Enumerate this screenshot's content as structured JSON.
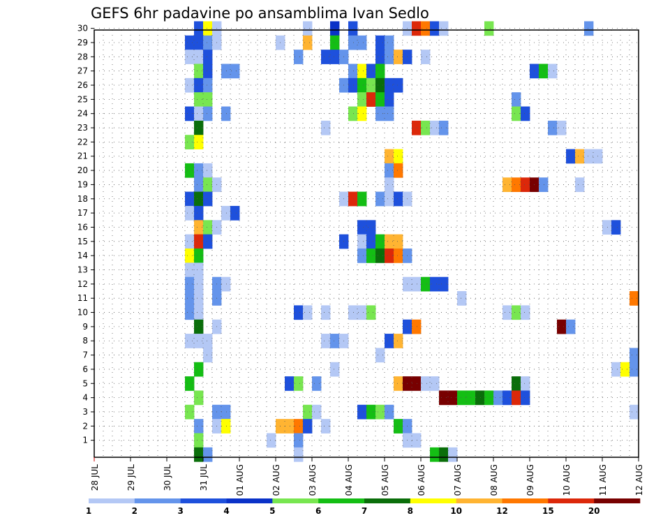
{
  "chart_data": {
    "type": "heatmap",
    "title": "GEFS 6hr padavine po ansamblima Ivan Sedlo",
    "xlabel": "",
    "ylabel": "",
    "x_tick_labels": [
      "28 JUL",
      "29 JUL",
      "30 JUL",
      "31 JUL",
      "01 AUG",
      "02 AUG",
      "03 AUG",
      "04 AUG",
      "05 AUG",
      "06 AUG",
      "07 AUG",
      "08 AUG",
      "09 AUG",
      "10 AUG",
      "11 AUG",
      "12 AUG"
    ],
    "y_tick_labels": [
      "1",
      "2",
      "3",
      "4",
      "5",
      "6",
      "7",
      "8",
      "9",
      "10",
      "11",
      "12",
      "13",
      "14",
      "15",
      "16",
      "17",
      "18",
      "19",
      "20",
      "21",
      "22",
      "23",
      "24",
      "25",
      "26",
      "27",
      "28",
      "29",
      "30"
    ],
    "x_unit": "6-hour step from 28 JUL 00Z",
    "xlim": [
      0,
      60
    ],
    "ylim": [
      0,
      30
    ],
    "grid": true,
    "colorbar": {
      "labels": [
        "1",
        "2",
        "3",
        "4",
        "5",
        "6",
        "7",
        "8",
        "10",
        "12",
        "15",
        "20"
      ],
      "colors": [
        "#b4c8f5",
        "#6494eb",
        "#1e50dc",
        "#0a32c8",
        "#78e650",
        "#14be14",
        "#0a6e0a",
        "#ffff00",
        "#ffb432",
        "#ff7800",
        "#dc280a",
        "#780000"
      ]
    },
    "cells": [
      [
        11,
        30,
        3
      ],
      [
        12,
        30,
        8
      ],
      [
        13,
        30,
        1
      ],
      [
        23,
        30,
        1
      ],
      [
        26,
        30,
        4
      ],
      [
        28,
        30,
        3
      ],
      [
        34,
        30,
        1
      ],
      [
        35,
        30,
        11
      ],
      [
        36,
        30,
        10
      ],
      [
        37,
        30,
        3
      ],
      [
        38,
        30,
        1
      ],
      [
        43,
        30,
        5
      ],
      [
        54,
        30,
        2
      ],
      [
        10,
        29,
        3
      ],
      [
        11,
        29,
        3
      ],
      [
        12,
        29,
        2
      ],
      [
        13,
        29,
        1
      ],
      [
        20,
        29,
        1
      ],
      [
        23,
        29,
        9
      ],
      [
        26,
        29,
        6
      ],
      [
        28,
        29,
        2
      ],
      [
        29,
        29,
        2
      ],
      [
        31,
        29,
        3
      ],
      [
        32,
        29,
        2
      ],
      [
        10,
        28,
        1
      ],
      [
        11,
        28,
        1
      ],
      [
        12,
        28,
        3
      ],
      [
        22,
        28,
        2
      ],
      [
        25,
        28,
        3
      ],
      [
        26,
        28,
        3
      ],
      [
        27,
        28,
        2
      ],
      [
        31,
        28,
        3
      ],
      [
        32,
        28,
        2
      ],
      [
        33,
        28,
        9
      ],
      [
        34,
        28,
        3
      ],
      [
        36,
        28,
        1
      ],
      [
        11,
        27,
        5
      ],
      [
        12,
        27,
        3
      ],
      [
        14,
        27,
        2
      ],
      [
        15,
        27,
        2
      ],
      [
        28,
        27,
        2
      ],
      [
        29,
        27,
        8
      ],
      [
        30,
        27,
        3
      ],
      [
        31,
        27,
        6
      ],
      [
        48,
        27,
        3
      ],
      [
        49,
        27,
        6
      ],
      [
        50,
        27,
        1
      ],
      [
        10,
        26,
        1
      ],
      [
        11,
        26,
        3
      ],
      [
        12,
        26,
        2
      ],
      [
        27,
        26,
        2
      ],
      [
        28,
        26,
        3
      ],
      [
        29,
        26,
        6
      ],
      [
        30,
        26,
        5
      ],
      [
        31,
        26,
        7
      ],
      [
        32,
        26,
        3
      ],
      [
        33,
        26,
        3
      ],
      [
        11,
        25,
        5
      ],
      [
        12,
        25,
        5
      ],
      [
        29,
        25,
        5
      ],
      [
        30,
        25,
        11
      ],
      [
        31,
        25,
        6
      ],
      [
        32,
        25,
        3
      ],
      [
        46,
        25,
        2
      ],
      [
        10,
        24,
        3
      ],
      [
        11,
        24,
        1
      ],
      [
        12,
        24,
        2
      ],
      [
        14,
        24,
        2
      ],
      [
        28,
        24,
        5
      ],
      [
        29,
        24,
        8
      ],
      [
        31,
        24,
        2
      ],
      [
        32,
        24,
        2
      ],
      [
        46,
        24,
        5
      ],
      [
        47,
        24,
        3
      ],
      [
        11,
        23,
        7
      ],
      [
        25,
        23,
        1
      ],
      [
        35,
        23,
        11
      ],
      [
        36,
        23,
        5
      ],
      [
        37,
        23,
        1
      ],
      [
        38,
        23,
        2
      ],
      [
        50,
        23,
        2
      ],
      [
        51,
        23,
        1
      ],
      [
        10,
        22,
        5
      ],
      [
        11,
        22,
        8
      ],
      [
        32,
        21,
        9
      ],
      [
        33,
        21,
        8
      ],
      [
        52,
        21,
        3
      ],
      [
        53,
        21,
        9
      ],
      [
        54,
        21,
        1
      ],
      [
        55,
        21,
        1
      ],
      [
        10,
        20,
        6
      ],
      [
        11,
        20,
        2
      ],
      [
        12,
        20,
        1
      ],
      [
        32,
        20,
        2
      ],
      [
        33,
        20,
        10
      ],
      [
        11,
        19,
        2
      ],
      [
        12,
        19,
        5
      ],
      [
        13,
        19,
        1
      ],
      [
        32,
        19,
        1
      ],
      [
        45,
        19,
        9
      ],
      [
        46,
        19,
        10
      ],
      [
        47,
        19,
        11
      ],
      [
        48,
        19,
        12
      ],
      [
        49,
        19,
        2
      ],
      [
        53,
        19,
        1
      ],
      [
        10,
        18,
        3
      ],
      [
        11,
        18,
        7
      ],
      [
        12,
        18,
        3
      ],
      [
        27,
        18,
        1
      ],
      [
        28,
        18,
        11
      ],
      [
        29,
        18,
        6
      ],
      [
        31,
        18,
        2
      ],
      [
        32,
        18,
        1
      ],
      [
        33,
        18,
        3
      ],
      [
        34,
        18,
        1
      ],
      [
        10,
        17,
        1
      ],
      [
        11,
        17,
        3
      ],
      [
        14,
        17,
        1
      ],
      [
        15,
        17,
        3
      ],
      [
        11,
        16,
        9
      ],
      [
        12,
        16,
        5
      ],
      [
        13,
        16,
        1
      ],
      [
        29,
        16,
        3
      ],
      [
        30,
        16,
        3
      ],
      [
        56,
        16,
        1
      ],
      [
        57,
        16,
        3
      ],
      [
        10,
        15,
        1
      ],
      [
        11,
        15,
        11
      ],
      [
        12,
        15,
        3
      ],
      [
        27,
        15,
        3
      ],
      [
        29,
        15,
        1
      ],
      [
        30,
        15,
        3
      ],
      [
        31,
        15,
        6
      ],
      [
        32,
        15,
        9
      ],
      [
        33,
        15,
        9
      ],
      [
        10,
        14,
        8
      ],
      [
        11,
        14,
        6
      ],
      [
        29,
        14,
        2
      ],
      [
        30,
        14,
        6
      ],
      [
        31,
        14,
        7
      ],
      [
        32,
        14,
        11
      ],
      [
        33,
        14,
        10
      ],
      [
        34,
        14,
        2
      ],
      [
        10,
        13,
        1
      ],
      [
        11,
        13,
        1
      ],
      [
        34,
        12,
        1
      ],
      [
        35,
        12,
        1
      ],
      [
        36,
        12,
        6
      ],
      [
        37,
        12,
        3
      ],
      [
        38,
        12,
        3
      ],
      [
        10,
        12,
        2
      ],
      [
        11,
        12,
        1
      ],
      [
        13,
        12,
        2
      ],
      [
        14,
        12,
        1
      ],
      [
        40,
        11,
        1
      ],
      [
        59,
        11,
        10
      ],
      [
        10,
        11,
        2
      ],
      [
        11,
        11,
        1
      ],
      [
        13,
        11,
        2
      ],
      [
        10,
        10,
        2
      ],
      [
        11,
        10,
        1
      ],
      [
        22,
        10,
        3
      ],
      [
        23,
        10,
        1
      ],
      [
        25,
        10,
        1
      ],
      [
        28,
        10,
        1
      ],
      [
        29,
        10,
        1
      ],
      [
        30,
        10,
        5
      ],
      [
        45,
        10,
        1
      ],
      [
        46,
        10,
        5
      ],
      [
        47,
        10,
        1
      ],
      [
        11,
        9,
        7
      ],
      [
        13,
        9,
        1
      ],
      [
        34,
        9,
        3
      ],
      [
        35,
        9,
        10
      ],
      [
        51,
        9,
        12
      ],
      [
        52,
        9,
        2
      ],
      [
        10,
        8,
        1
      ],
      [
        11,
        8,
        1
      ],
      [
        12,
        8,
        1
      ],
      [
        25,
        8,
        1
      ],
      [
        26,
        8,
        2
      ],
      [
        27,
        8,
        1
      ],
      [
        32,
        8,
        3
      ],
      [
        33,
        8,
        9
      ],
      [
        12,
        7,
        1
      ],
      [
        31,
        7,
        1
      ],
      [
        59,
        7,
        2
      ],
      [
        11,
        6,
        6
      ],
      [
        26,
        6,
        1
      ],
      [
        57,
        6,
        1
      ],
      [
        58,
        6,
        8
      ],
      [
        59,
        6,
        2
      ],
      [
        10,
        5,
        6
      ],
      [
        21,
        5,
        3
      ],
      [
        22,
        5,
        5
      ],
      [
        24,
        5,
        2
      ],
      [
        33,
        5,
        9
      ],
      [
        34,
        5,
        12
      ],
      [
        35,
        5,
        12
      ],
      [
        36,
        5,
        1
      ],
      [
        37,
        5,
        1
      ],
      [
        46,
        5,
        7
      ],
      [
        47,
        5,
        1
      ],
      [
        11,
        4,
        5
      ],
      [
        38,
        4,
        12
      ],
      [
        39,
        4,
        12
      ],
      [
        40,
        4,
        6
      ],
      [
        41,
        4,
        6
      ],
      [
        42,
        4,
        7
      ],
      [
        43,
        4,
        6
      ],
      [
        44,
        4,
        2
      ],
      [
        45,
        4,
        3
      ],
      [
        46,
        4,
        11
      ],
      [
        47,
        4,
        3
      ],
      [
        10,
        3,
        5
      ],
      [
        13,
        3,
        2
      ],
      [
        14,
        3,
        2
      ],
      [
        23,
        3,
        5
      ],
      [
        24,
        3,
        1
      ],
      [
        29,
        3,
        3
      ],
      [
        30,
        3,
        6
      ],
      [
        31,
        3,
        5
      ],
      [
        32,
        3,
        2
      ],
      [
        59,
        3,
        1
      ],
      [
        11,
        2,
        2
      ],
      [
        13,
        2,
        1
      ],
      [
        14,
        2,
        8
      ],
      [
        20,
        2,
        9
      ],
      [
        21,
        2,
        9
      ],
      [
        22,
        2,
        10
      ],
      [
        23,
        2,
        3
      ],
      [
        25,
        2,
        1
      ],
      [
        33,
        2,
        6
      ],
      [
        34,
        2,
        2
      ],
      [
        11,
        1,
        5
      ],
      [
        19,
        1,
        1
      ],
      [
        22,
        1,
        2
      ],
      [
        34,
        1,
        1
      ],
      [
        35,
        1,
        1
      ],
      [
        11,
        0,
        7
      ],
      [
        12,
        0,
        2
      ],
      [
        22,
        0,
        1
      ],
      [
        37,
        0,
        6
      ],
      [
        38,
        0,
        7
      ],
      [
        39,
        0,
        1
      ]
    ]
  }
}
